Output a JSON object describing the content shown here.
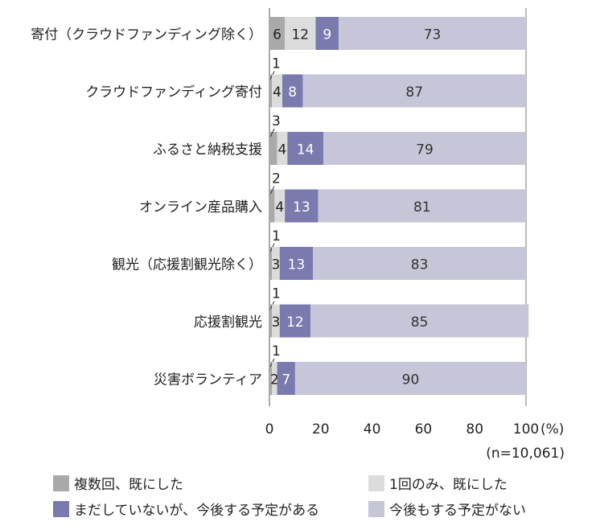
{
  "chart_data": {
    "type": "bar",
    "orientation": "horizontal",
    "stacked": true,
    "categories": [
      "寄付（クラウドファンディング除く）",
      "クラウドファンディング寄付",
      "ふるさと納税支援",
      "オンライン産品購入",
      "観光（応援割観光除く）",
      "応援割観光",
      "災害ボランティア"
    ],
    "series": [
      {
        "name": "複数回、既にした",
        "color": "#a9a9a9",
        "values": [
          6,
          1,
          3,
          2,
          1,
          1,
          1
        ]
      },
      {
        "name": "1回のみ、既にした",
        "color": "#dcdcdc",
        "values": [
          12,
          4,
          4,
          4,
          3,
          3,
          2
        ]
      },
      {
        "name": "まだしていないが、今後する予定がある",
        "color": "#7b7aaf",
        "values": [
          9,
          8,
          14,
          13,
          13,
          12,
          7
        ]
      },
      {
        "name": "今後もする予定がない",
        "color": "#c6c6d8",
        "values": [
          73,
          87,
          79,
          81,
          83,
          85,
          90
        ]
      }
    ],
    "xlim": [
      0,
      100
    ],
    "xticks": [
      0,
      20,
      40,
      60,
      80,
      100
    ],
    "xunit": "(%)",
    "note": "(n=10,061)",
    "legend_position": "bottom",
    "grid": "vertical at 0, 100"
  }
}
